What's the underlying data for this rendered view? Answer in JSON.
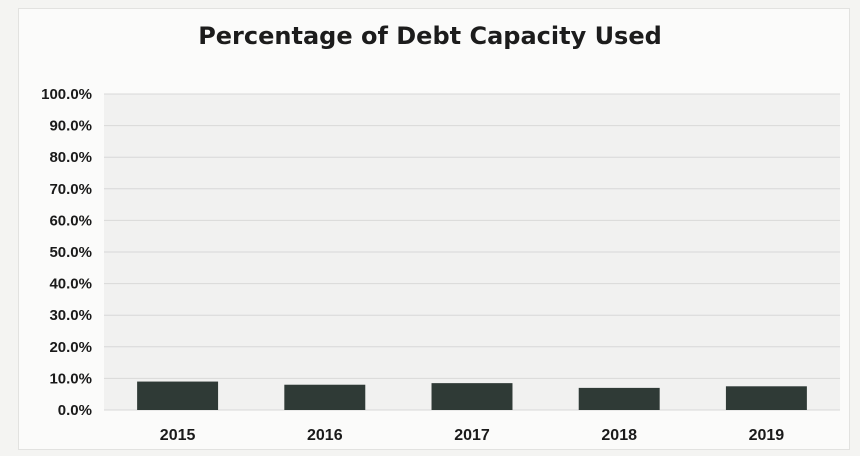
{
  "chart_data": {
    "type": "bar",
    "title": "Percentage of Debt Capacity Used",
    "xlabel": "",
    "ylabel": "",
    "categories": [
      "2015",
      "2016",
      "2017",
      "2018",
      "2019"
    ],
    "values": [
      9.0,
      8.0,
      8.5,
      7.0,
      7.5
    ],
    "ylim": [
      0,
      100
    ],
    "yticks": [
      "0.0%",
      "10.0%",
      "20.0%",
      "30.0%",
      "40.0%",
      "50.0%",
      "60.0%",
      "70.0%",
      "80.0%",
      "90.0%",
      "100.0%"
    ],
    "grid": true,
    "legend": "none",
    "bar_color": "#2f3a36"
  }
}
